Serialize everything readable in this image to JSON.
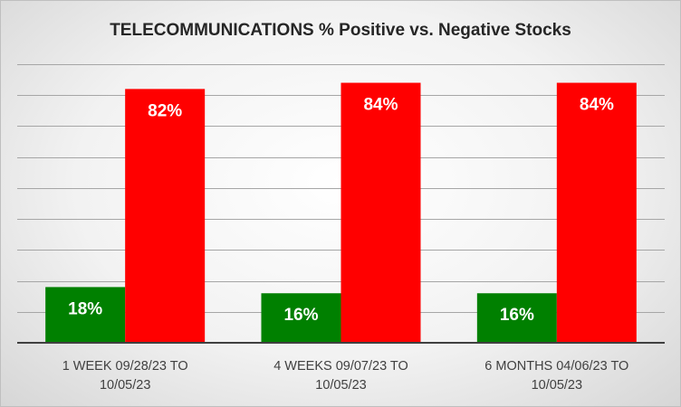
{
  "chart_data": {
    "type": "bar",
    "title": "TELECOMMUNICATIONS % Positive vs. Negative Stocks",
    "categories": [
      [
        "1 WEEK 09/28/23 TO",
        "10/05/23"
      ],
      [
        "4 WEEKS 09/07/23 TO",
        "10/05/23"
      ],
      [
        "6 MONTHS 04/06/23 TO",
        "10/05/23"
      ]
    ],
    "series": [
      {
        "values": [
          18,
          16,
          16
        ],
        "labels": [
          "18%",
          "16%",
          "16%"
        ],
        "color": "#008000"
      },
      {
        "values": [
          82,
          84,
          84
        ],
        "labels": [
          "82%",
          "84%",
          "84%"
        ],
        "color": "#ff0000"
      }
    ],
    "ylim": [
      0,
      90
    ],
    "grid": true,
    "legend": "none"
  }
}
